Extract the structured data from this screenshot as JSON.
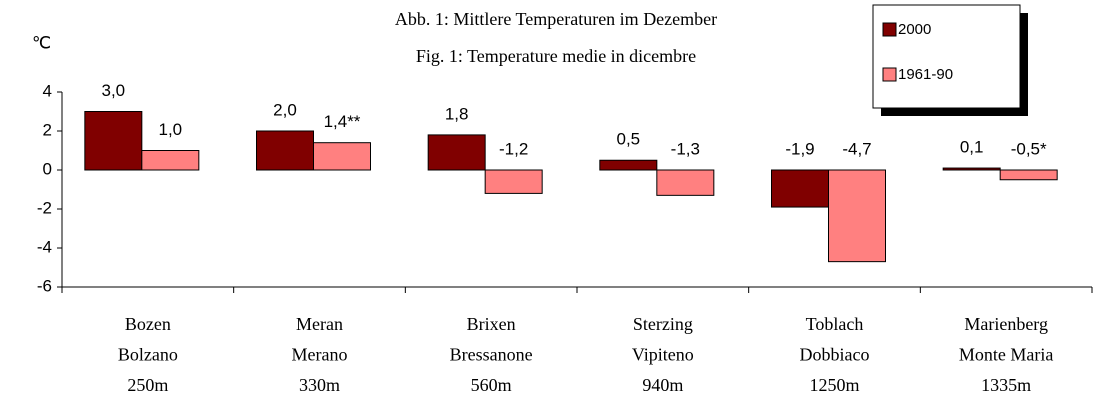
{
  "chart_data": {
    "type": "bar",
    "title": "Abb. 1: Mittlere Temperaturen im Dezember",
    "subtitle": "Fig. 1: Temperature medie in dicembre",
    "y_label": "℃",
    "categories": [
      [
        "Bozen",
        "Bolzano",
        "250m"
      ],
      [
        "Meran",
        "Merano",
        "330m"
      ],
      [
        "Brixen",
        "Bressanone",
        "560m"
      ],
      [
        "Sterzing",
        "Vipiteno",
        "940m"
      ],
      [
        "Toblach",
        "Dobbiaco",
        "1250m"
      ],
      [
        "Marienberg",
        "Monte Maria",
        "1335m"
      ]
    ],
    "series": [
      {
        "name": "2000",
        "color": "#800000",
        "values": [
          3.0,
          2.0,
          1.8,
          0.5,
          -1.9,
          0.1
        ],
        "value_labels": [
          "3,0",
          "2,0",
          "1,8",
          "0,5",
          "-1,9",
          "0,1"
        ]
      },
      {
        "name": "1961-90",
        "color": "#ff8080",
        "values": [
          1.0,
          1.4,
          -1.2,
          -1.3,
          -4.7,
          -0.5
        ],
        "value_labels": [
          "1,0",
          "1,4**",
          "-1,2",
          "-1,3",
          "-4,7",
          "-0,5*"
        ]
      }
    ],
    "ylim": [
      -6,
      4
    ],
    "yticks": [
      -6,
      -4,
      -2,
      0,
      2,
      4
    ],
    "grid": false
  }
}
